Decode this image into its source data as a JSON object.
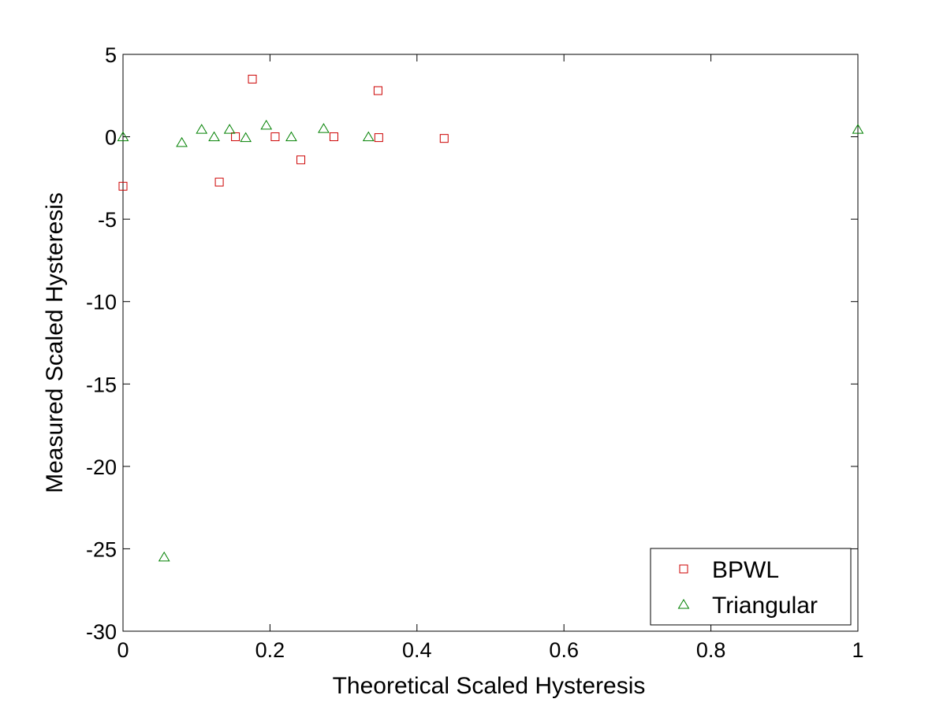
{
  "chart_data": {
    "type": "scatter",
    "title": "",
    "xlabel": "Theoretical Scaled Hysteresis",
    "ylabel": "Measured Scaled Hysteresis",
    "xlim": [
      0,
      1
    ],
    "ylim": [
      -30,
      5
    ],
    "x_ticks": [
      0,
      0.2,
      0.4,
      0.6,
      0.8,
      1
    ],
    "x_tick_labels": [
      "0",
      "0.2",
      "0.4",
      "0.6",
      "0.8",
      "1"
    ],
    "y_ticks": [
      5,
      0,
      -5,
      -10,
      -15,
      -20,
      -25,
      -30
    ],
    "y_tick_labels": [
      "5",
      "0",
      "-5",
      "-10",
      "-15",
      "-20",
      "-25",
      "-30"
    ],
    "grid": false,
    "legend_position": "bottom-right",
    "series": [
      {
        "name": "BPWL",
        "marker": "square",
        "color": "#cc0000",
        "points": [
          [
            0.0,
            -3.0
          ],
          [
            0.131,
            -2.75
          ],
          [
            0.153,
            0.0
          ],
          [
            0.176,
            3.5
          ],
          [
            0.207,
            0.0
          ],
          [
            0.242,
            -1.4
          ],
          [
            0.287,
            0.0
          ],
          [
            0.347,
            2.8
          ],
          [
            0.348,
            -0.05
          ],
          [
            0.437,
            -0.1
          ]
        ]
      },
      {
        "name": "Triangular",
        "marker": "triangle",
        "color": "#008000",
        "points": [
          [
            0.0,
            0.0
          ],
          [
            0.056,
            -25.5
          ],
          [
            0.08,
            -0.35
          ],
          [
            0.107,
            0.45
          ],
          [
            0.124,
            0.0
          ],
          [
            0.145,
            0.45
          ],
          [
            0.167,
            -0.05
          ],
          [
            0.195,
            0.7
          ],
          [
            0.229,
            0.0
          ],
          [
            0.273,
            0.5
          ],
          [
            0.334,
            0.0
          ],
          [
            1.0,
            0.45
          ]
        ]
      }
    ]
  }
}
